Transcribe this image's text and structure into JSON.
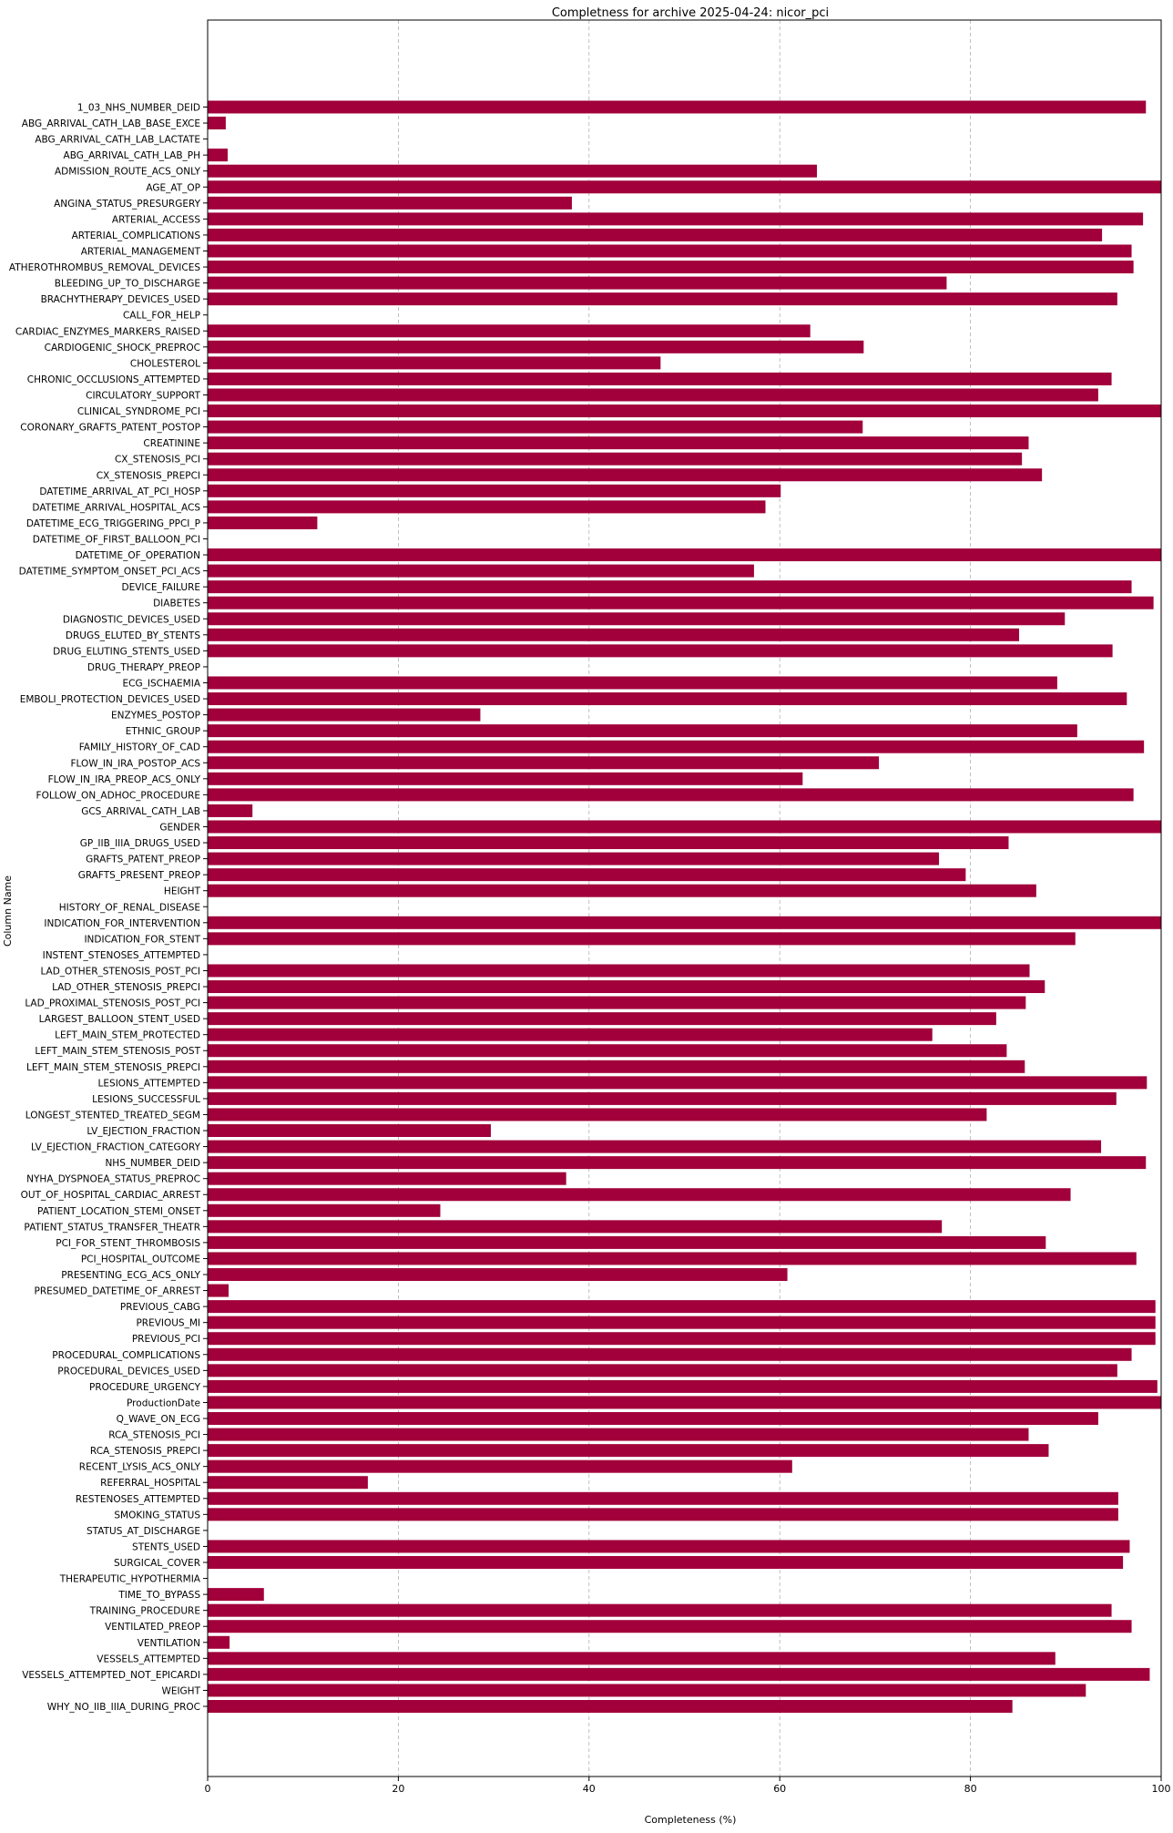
{
  "chart_data": {
    "type": "bar",
    "orientation": "horizontal",
    "title": "Completness for archive 2025-04-24: nicor_pci",
    "xlabel": "Completeness (%)",
    "ylabel": "Column Name",
    "xlim": [
      0,
      100
    ],
    "xticks": [
      "0",
      "20",
      "40",
      "60",
      "80",
      "100"
    ],
    "grid": "x-dashed",
    "bar_color": "#a1003a",
    "categories": [
      "1_03_NHS_NUMBER_DEID",
      "ABG_ARRIVAL_CATH_LAB_BASE_EXCE",
      "ABG_ARRIVAL_CATH_LAB_LACTATE",
      "ABG_ARRIVAL_CATH_LAB_PH",
      "ADMISSION_ROUTE_ACS_ONLY",
      "AGE_AT_OP",
      "ANGINA_STATUS_PRESURGERY",
      "ARTERIAL_ACCESS",
      "ARTERIAL_COMPLICATIONS",
      "ARTERIAL_MANAGEMENT",
      "ATHEROTHROMBUS_REMOVAL_DEVICES",
      "BLEEDING_UP_TO_DISCHARGE",
      "BRACHYTHERAPY_DEVICES_USED",
      "CALL_FOR_HELP",
      "CARDIAC_ENZYMES_MARKERS_RAISED",
      "CARDIOGENIC_SHOCK_PREPROC",
      "CHOLESTEROL",
      "CHRONIC_OCCLUSIONS_ATTEMPTED",
      "CIRCULATORY_SUPPORT",
      "CLINICAL_SYNDROME_PCI",
      "CORONARY_GRAFTS_PATENT_POSTOP",
      "CREATININE",
      "CX_STENOSIS_PCI",
      "CX_STENOSIS_PREPCI",
      "DATETIME_ARRIVAL_AT_PCI_HOSP",
      "DATETIME_ARRIVAL_HOSPITAL_ACS",
      "DATETIME_ECG_TRIGGERING_PPCI_P",
      "DATETIME_OF_FIRST_BALLOON_PCI",
      "DATETIME_OF_OPERATION",
      "DATETIME_SYMPTOM_ONSET_PCI_ACS",
      "DEVICE_FAILURE",
      "DIABETES",
      "DIAGNOSTIC_DEVICES_USED",
      "DRUGS_ELUTED_BY_STENTS",
      "DRUG_ELUTING_STENTS_USED",
      "DRUG_THERAPY_PREOP",
      "ECG_ISCHAEMIA",
      "EMBOLI_PROTECTION_DEVICES_USED",
      "ENZYMES_POSTOP",
      "ETHNIC_GROUP",
      "FAMILY_HISTORY_OF_CAD",
      "FLOW_IN_IRA_POSTOP_ACS",
      "FLOW_IN_IRA_PREOP_ACS_ONLY",
      "FOLLOW_ON_ADHOC_PROCEDURE",
      "GCS_ARRIVAL_CATH_LAB",
      "GENDER",
      "GP_IIB_IIIA_DRUGS_USED",
      "GRAFTS_PATENT_PREOP",
      "GRAFTS_PRESENT_PREOP",
      "HEIGHT",
      "HISTORY_OF_RENAL_DISEASE",
      "INDICATION_FOR_INTERVENTION",
      "INDICATION_FOR_STENT",
      "INSTENT_STENOSES_ATTEMPTED",
      "LAD_OTHER_STENOSIS_POST_PCI",
      "LAD_OTHER_STENOSIS_PREPCI",
      "LAD_PROXIMAL_STENOSIS_POST_PCI",
      "LARGEST_BALLOON_STENT_USED",
      "LEFT_MAIN_STEM_PROTECTED",
      "LEFT_MAIN_STEM_STENOSIS_POST",
      "LEFT_MAIN_STEM_STENOSIS_PREPCI",
      "LESIONS_ATTEMPTED",
      "LESIONS_SUCCESSFUL",
      "LONGEST_STENTED_TREATED_SEGM",
      "LV_EJECTION_FRACTION",
      "LV_EJECTION_FRACTION_CATEGORY",
      "NHS_NUMBER_DEID",
      "NYHA_DYSPNOEA_STATUS_PREPROC",
      "OUT_OF_HOSPITAL_CARDIAC_ARREST",
      "PATIENT_LOCATION_STEMI_ONSET",
      "PATIENT_STATUS_TRANSFER_THEATR",
      "PCI_FOR_STENT_THROMBOSIS",
      "PCI_HOSPITAL_OUTCOME",
      "PRESENTING_ECG_ACS_ONLY",
      "PRESUMED_DATETIME_OF_ARREST",
      "PREVIOUS_CABG",
      "PREVIOUS_MI",
      "PREVIOUS_PCI",
      "PROCEDURAL_COMPLICATIONS",
      "PROCEDURAL_DEVICES_USED",
      "PROCEDURE_URGENCY",
      "ProductionDate",
      "Q_WAVE_ON_ECG",
      "RCA_STENOSIS_PCI",
      "RCA_STENOSIS_PREPCI",
      "RECENT_LYSIS_ACS_ONLY",
      "REFERRAL_HOSPITAL",
      "RESTENOSES_ATTEMPTED",
      "SMOKING_STATUS",
      "STATUS_AT_DISCHARGE",
      "STENTS_USED",
      "SURGICAL_COVER",
      "THERAPEUTIC_HYPOTHERMIA",
      "TIME_TO_BYPASS",
      "TRAINING_PROCEDURE",
      "VENTILATED_PREOP",
      "VENTILATION",
      "VESSELS_ATTEMPTED",
      "VESSELS_ATTEMPTED_NOT_EPICARDI",
      "WEIGHT",
      "WHY_NO_IIB_IIIA_DURING_PROC"
    ],
    "values": [
      98.4,
      1.9,
      0,
      2.1,
      63.9,
      100,
      38.2,
      98.1,
      93.8,
      96.9,
      97.1,
      77.5,
      95.4,
      0,
      63.2,
      68.8,
      47.5,
      94.8,
      93.4,
      100,
      68.7,
      86.1,
      85.4,
      87.5,
      60.1,
      58.5,
      11.5,
      0,
      100,
      57.3,
      96.9,
      99.2,
      89.9,
      85.1,
      94.9,
      0,
      89.1,
      96.4,
      28.6,
      91.2,
      98.2,
      70.4,
      62.4,
      97.1,
      4.7,
      100,
      84.0,
      76.7,
      79.5,
      86.9,
      0,
      100,
      91.0,
      0,
      86.2,
      87.8,
      85.8,
      82.7,
      76.0,
      83.8,
      85.7,
      98.5,
      95.3,
      81.7,
      29.7,
      93.7,
      98.4,
      37.6,
      90.5,
      24.4,
      77.0,
      87.9,
      97.4,
      60.8,
      2.2,
      99.4,
      99.4,
      99.4,
      96.9,
      95.4,
      99.6,
      100,
      93.4,
      86.1,
      88.2,
      61.3,
      16.8,
      95.5,
      95.5,
      0,
      96.7,
      96.0,
      0,
      5.9,
      94.8,
      96.9,
      2.3,
      88.9,
      98.8,
      92.1,
      84.4
    ]
  }
}
